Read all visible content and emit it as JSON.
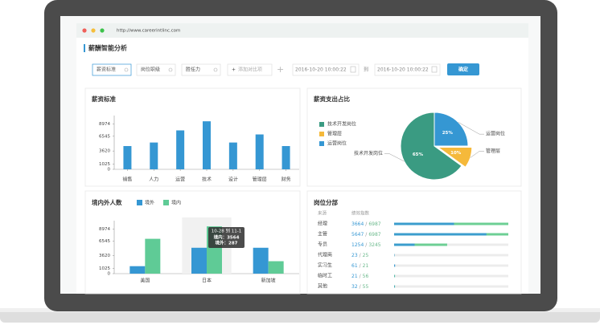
{
  "browser": {
    "url": "http://www.careerintlinc.com"
  },
  "header": {
    "title": "薪酬智能分析"
  },
  "filters": {
    "tags": [
      "薪资标准",
      "岗位职级",
      "胜任力"
    ],
    "add_label": "添加对比项",
    "start_date": "2016-10-20 10:00:22",
    "range_word": "到",
    "end_date": "2016-10-20 10:00:22",
    "confirm": "确定"
  },
  "salary_chart": {
    "type": "bar",
    "title": "薪资标准",
    "categories": [
      "销售",
      "人力",
      "运营",
      "技术",
      "设计",
      "管理层",
      "财务"
    ],
    "values": [
      4600,
      5300,
      7700,
      9500,
      5300,
      6900,
      4600
    ],
    "color": "#3597d3",
    "ylim": [
      0,
      10000
    ],
    "yticks": [
      0,
      1025,
      3620,
      6545,
      8974
    ]
  },
  "share_chart": {
    "type": "pie",
    "title": "薪资支出占比",
    "categories": [
      "技术开发岗位",
      "管理层",
      "运营岗位"
    ],
    "values": [
      65,
      10,
      25
    ],
    "value_labels": [
      "65%",
      "10%",
      "25%"
    ],
    "colors": [
      "#3a9b82",
      "#f5b93b",
      "#3597d3"
    ]
  },
  "headcount_chart": {
    "type": "grouped-bar",
    "title": "境内外人数",
    "categories": [
      "美国",
      "日本",
      "新加坡"
    ],
    "series": [
      {
        "name": "境外",
        "color": "#3597d3",
        "values": [
          1500,
          5200,
          5200
        ]
      },
      {
        "name": "境内",
        "color": "#5fcb96",
        "values": [
          7000,
          9500,
          2500
        ]
      }
    ],
    "ylim": [
      0,
      10000
    ],
    "yticks": [
      0,
      1025,
      3620,
      6545,
      8974
    ],
    "tooltip": {
      "range": "10-28 到 11-1",
      "lines": [
        "境内：3564",
        "境外：287"
      ]
    }
  },
  "position_table": {
    "title": "岗位分部",
    "columns": [
      "来源",
      "绩效指数"
    ],
    "separator": "/",
    "colors": [
      "#3597d3",
      "#6dcf94"
    ],
    "rows": [
      {
        "name": "经理",
        "value": 3664,
        "total": 6987
      },
      {
        "name": "主管",
        "value": 5647,
        "total": 6987
      },
      {
        "name": "专员",
        "value": 1254,
        "total": 3245
      },
      {
        "name": "代理商",
        "value": 23,
        "total": 25
      },
      {
        "name": "实习生",
        "value": 61,
        "total": 21
      },
      {
        "name": "临时工",
        "value": 21,
        "total": 56
      },
      {
        "name": "其他",
        "value": 32,
        "total": 55
      }
    ]
  }
}
